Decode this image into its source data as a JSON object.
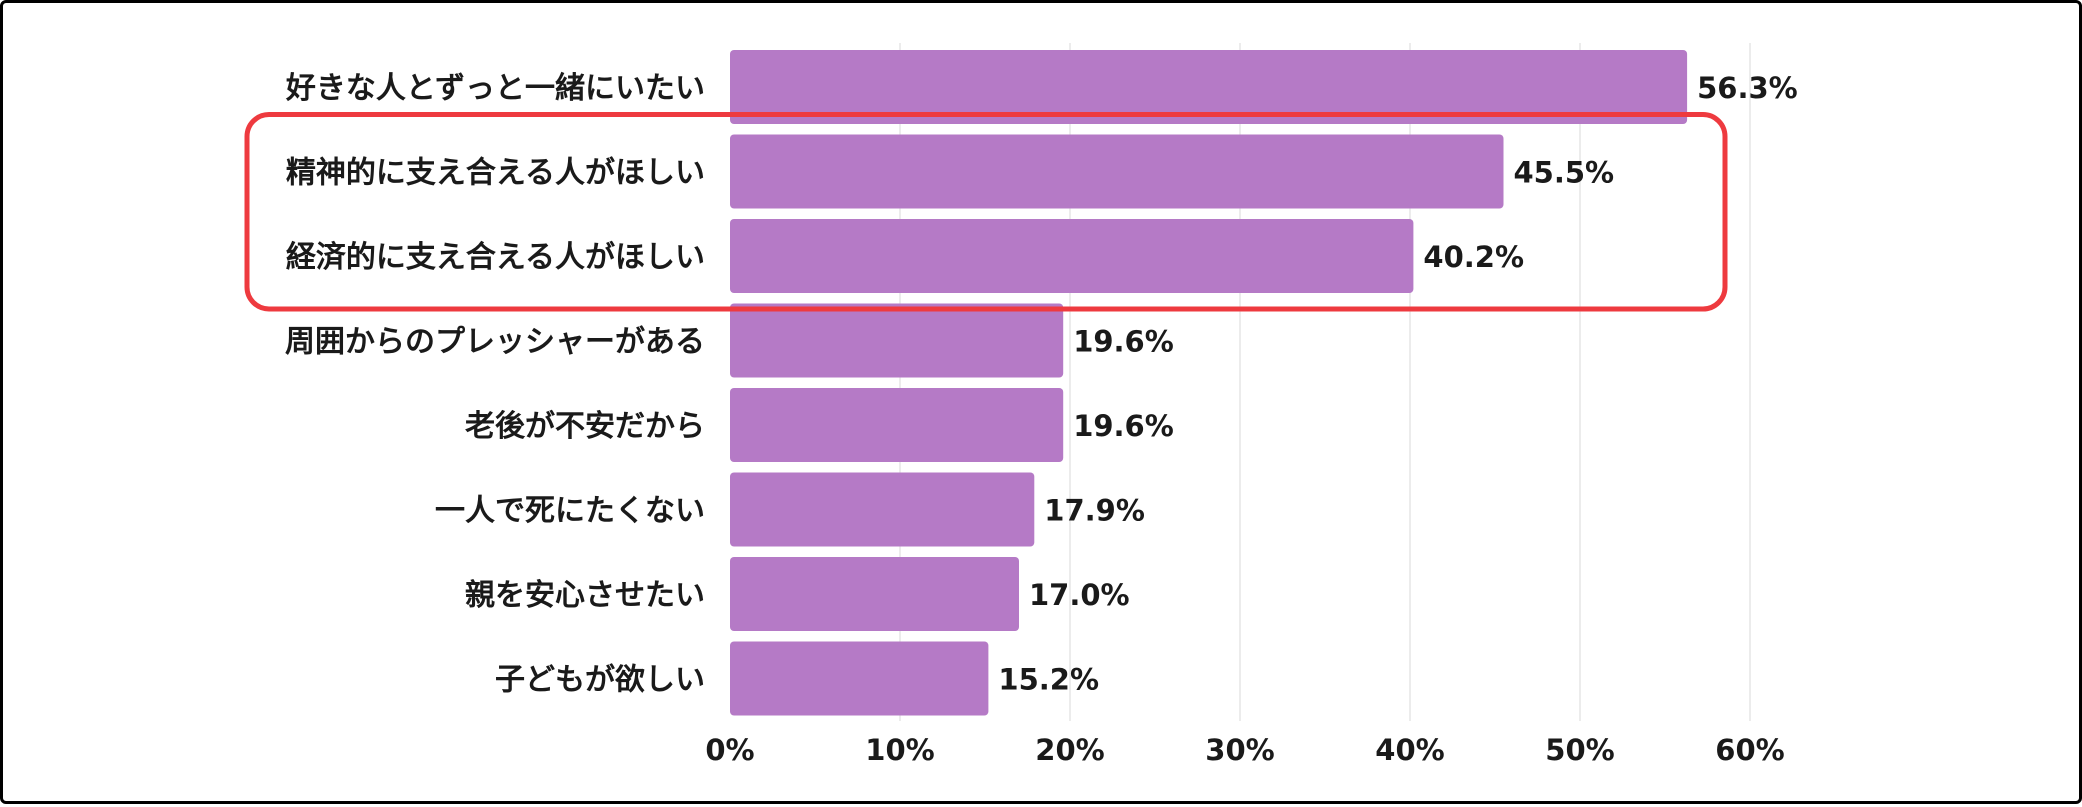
{
  "chart_data": {
    "type": "bar",
    "orientation": "horizontal",
    "categories": [
      "好きな人とずっと一緒にいたい",
      "精神的に支え合える人がほしい",
      "経済的に支え合える人がほしい",
      "周囲からのプレッシャーがある",
      "老後が不安だから",
      "一人で死にたくない",
      "親を安心させたい",
      "子どもが欲しい"
    ],
    "values": [
      56.3,
      45.5,
      40.2,
      19.6,
      19.6,
      17.9,
      17.0,
      15.2
    ],
    "value_labels": [
      "56.3%",
      "45.5%",
      "40.2%",
      "19.6%",
      "19.6%",
      "17.9%",
      "17.0%",
      "15.2%"
    ],
    "xlim": [
      0,
      60
    ],
    "x_ticks": [
      0,
      10,
      20,
      30,
      40,
      50,
      60
    ],
    "x_tick_labels": [
      "0%",
      "10%",
      "20%",
      "30%",
      "40%",
      "50%",
      "60%"
    ],
    "grid": true,
    "highlight": {
      "categories": [
        1,
        2
      ],
      "color": "#ee3a3f"
    },
    "colors": {
      "bar": "#b57ac6",
      "grid": "#e6e6e6",
      "text": "#1a1a1a"
    }
  }
}
